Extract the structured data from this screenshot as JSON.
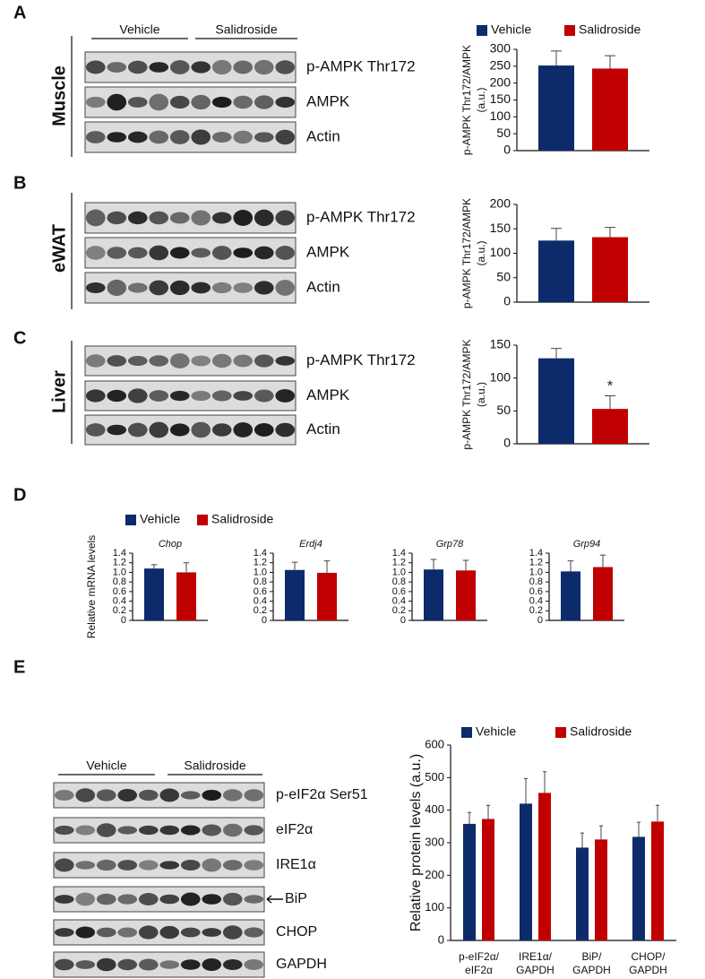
{
  "panels": [
    {
      "letter": "A",
      "tissue": "Muscle",
      "groups": [
        "Vehicle",
        "Salidroside"
      ],
      "blots": [
        "p-AMPK Thr172",
        "AMPK",
        "Actin"
      ]
    },
    {
      "letter": "B",
      "tissue": "eWAT",
      "blots": [
        "p-AMPK Thr172",
        "AMPK",
        "Actin"
      ]
    },
    {
      "letter": "C",
      "tissue": "Liver",
      "blots": [
        "p-AMPK Thr172",
        "AMPK",
        "Actin"
      ]
    },
    {
      "letter": "D"
    },
    {
      "letter": "E",
      "groups": [
        "Vehicle",
        "Salidroside"
      ],
      "blots": [
        "p-eIF2α Ser51",
        "eIF2α",
        "IRE1α",
        "BiP",
        "CHOP",
        "GAPDH"
      ]
    }
  ],
  "chart_data": [
    {
      "type": "bar",
      "ylabel": [
        "p-AMPK Thr172/AMPK",
        "(a.u.)"
      ],
      "categories": [
        null
      ],
      "legend": true,
      "series": [
        {
          "name": "Vehicle",
          "color": "#0d2a6b",
          "values": [
            252
          ],
          "errors": [
            43
          ]
        },
        {
          "name": "Salidroside",
          "color": "#c00000",
          "values": [
            243
          ],
          "errors": [
            38
          ]
        }
      ],
      "ylim": [
        0,
        300
      ],
      "yticks": [
        0,
        50,
        100,
        150,
        200,
        250,
        300
      ]
    },
    {
      "type": "bar",
      "ylabel": [
        "p-AMPK Thr172/AMPK",
        "(a.u.)"
      ],
      "categories": [
        null
      ],
      "series": [
        {
          "name": "Vehicle",
          "color": "#0d2a6b",
          "values": [
            126
          ],
          "errors": [
            25
          ]
        },
        {
          "name": "Salidroside",
          "color": "#c00000",
          "values": [
            133
          ],
          "errors": [
            20
          ]
        }
      ],
      "ylim": [
        0,
        200
      ],
      "yticks": [
        0,
        50,
        100,
        150,
        200
      ]
    },
    {
      "type": "bar",
      "ylabel": [
        "p-AMPK Thr172/AMPK",
        "(a.u.)"
      ],
      "categories": [
        null
      ],
      "series": [
        {
          "name": "Vehicle",
          "color": "#0d2a6b",
          "values": [
            130
          ],
          "errors": [
            15
          ]
        },
        {
          "name": "Salidroside",
          "color": "#c00000",
          "values": [
            53
          ],
          "errors": [
            20
          ],
          "annotation": "*"
        }
      ],
      "ylim": [
        0,
        150
      ],
      "yticks": [
        0,
        50,
        100,
        150
      ]
    },
    {
      "type": "bar",
      "title": "Chop",
      "ylabel": [
        "Relative mRNA levels"
      ],
      "categories": [
        null
      ],
      "legend": true,
      "series": [
        {
          "name": "Vehicle",
          "color": "#0d2a6b",
          "values": [
            1.08
          ],
          "errors": [
            0.08
          ]
        },
        {
          "name": "Salidroside",
          "color": "#c00000",
          "values": [
            1.0
          ],
          "errors": [
            0.2
          ]
        }
      ],
      "ylim": [
        0,
        1.4
      ],
      "yticks": [
        0,
        0.2,
        0.4,
        0.6,
        0.8,
        {
          "value": 1,
          "label": "1.0"
        },
        1.2,
        1.4
      ]
    },
    {
      "type": "bar",
      "title": "Erdj4",
      "categories": [
        null
      ],
      "series": [
        {
          "name": "Vehicle",
          "color": "#0d2a6b",
          "values": [
            1.05
          ],
          "errors": [
            0.16
          ]
        },
        {
          "name": "Salidroside",
          "color": "#c00000",
          "values": [
            0.99
          ],
          "errors": [
            0.25
          ]
        }
      ],
      "ylim": [
        0,
        1.4
      ],
      "yticks": [
        0,
        0.2,
        0.4,
        0.6,
        0.8,
        {
          "value": 1,
          "label": "1.0"
        },
        1.2,
        1.4
      ]
    },
    {
      "type": "bar",
      "title": "Grp78",
      "categories": [
        null
      ],
      "series": [
        {
          "name": "Vehicle",
          "color": "#0d2a6b",
          "values": [
            1.06
          ],
          "errors": [
            0.21
          ]
        },
        {
          "name": "Salidroside",
          "color": "#c00000",
          "values": [
            1.04
          ],
          "errors": [
            0.21
          ]
        }
      ],
      "ylim": [
        0,
        1.4
      ],
      "yticks": [
        0,
        0.2,
        0.4,
        0.6,
        0.8,
        {
          "value": 1,
          "label": "1.0"
        },
        1.2,
        1.4
      ]
    },
    {
      "type": "bar",
      "title": "Grp94",
      "categories": [
        null
      ],
      "series": [
        {
          "name": "Vehicle",
          "color": "#0d2a6b",
          "values": [
            1.02
          ],
          "errors": [
            0.22
          ]
        },
        {
          "name": "Salidroside",
          "color": "#c00000",
          "values": [
            1.11
          ],
          "errors": [
            0.25
          ]
        }
      ],
      "ylim": [
        0,
        1.4
      ],
      "yticks": [
        0,
        0.2,
        0.4,
        0.6,
        0.8,
        {
          "value": 1,
          "label": "1.0"
        },
        1.2,
        1.4
      ]
    },
    {
      "type": "bar",
      "ylabel": [
        "Relative protein levels (a.u.)"
      ],
      "legend": true,
      "categories": [
        [
          "p-eIF2α/",
          "eIF2α"
        ],
        [
          "IRE1α/",
          "GAPDH"
        ],
        [
          "BiP/",
          "GAPDH"
        ],
        [
          "CHOP/",
          "GAPDH"
        ]
      ],
      "series": [
        {
          "name": "Vehicle",
          "color": "#0d2a6b",
          "values": [
            358,
            420,
            285,
            318
          ],
          "errors": [
            35,
            77,
            45,
            45
          ]
        },
        {
          "name": "Salidroside",
          "color": "#c00000",
          "values": [
            373,
            453,
            310,
            365
          ],
          "errors": [
            42,
            65,
            42,
            50
          ]
        }
      ],
      "ylim": [
        0,
        600
      ],
      "yticks": [
        0,
        100,
        200,
        300,
        400,
        500,
        600
      ]
    }
  ]
}
